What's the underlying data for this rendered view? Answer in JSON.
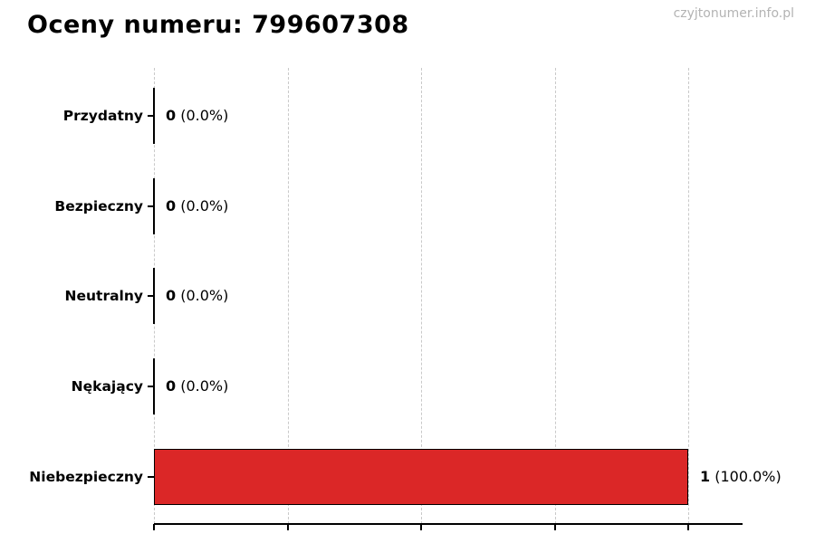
{
  "header": {
    "title": "Oceny numeru: 799607308",
    "watermark": "czyjtonumer.info.pl"
  },
  "chart_data": {
    "type": "bar",
    "orientation": "horizontal",
    "title": "Oceny numeru: 799607308",
    "categories": [
      "Przydatny",
      "Bezpieczny",
      "Neutralny",
      "Nękający",
      "Niebezpieczny"
    ],
    "values": [
      0,
      0,
      0,
      0,
      1
    ],
    "percent_labels": [
      "0.0%",
      "0.0%",
      "0.0%",
      "0.0%",
      "100.0%"
    ],
    "annotations": [
      "0 (0.0%)",
      "0 (0.0%)",
      "0 (0.0%)",
      "0 (0.0%)",
      "1 (100.0%)"
    ],
    "x_ticks": [
      0,
      0.25,
      0.5,
      0.75,
      1.0
    ],
    "xlim": [
      0,
      1.1
    ],
    "x_tick_labels_visible": false,
    "grid": "vertical-dashed",
    "legend": "none",
    "bar_color": "#db2727",
    "bar_edge_color": "#000000",
    "grid_color": "#c9c9c9",
    "watermark_color": "#b3b3b3"
  }
}
